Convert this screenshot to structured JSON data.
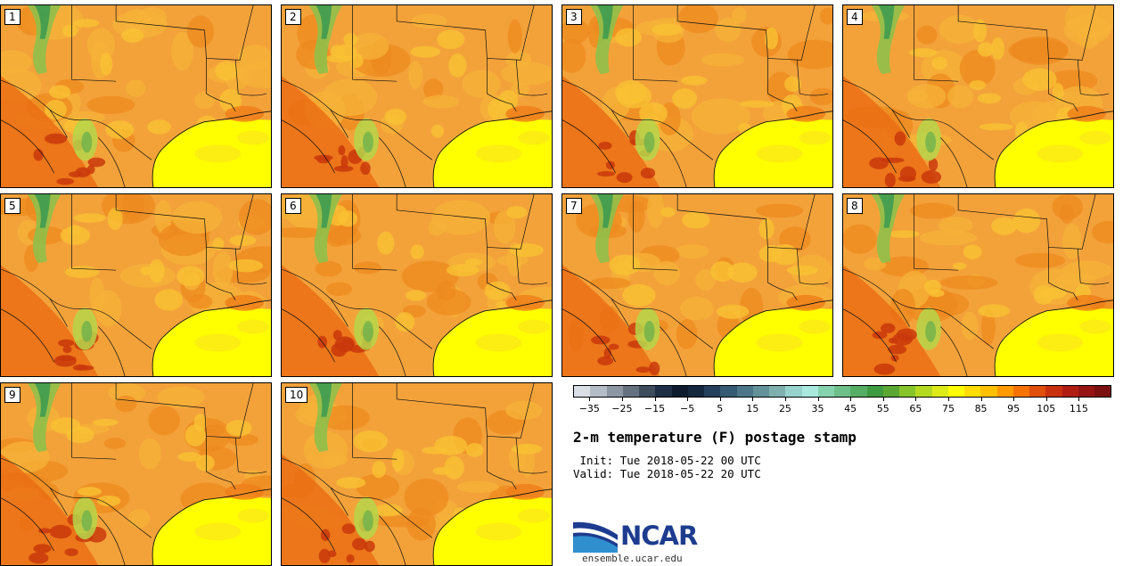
{
  "panels": [
    {
      "label": "1"
    },
    {
      "label": "2"
    },
    {
      "label": "3"
    },
    {
      "label": "4"
    },
    {
      "label": "5"
    },
    {
      "label": "6"
    },
    {
      "label": "7"
    },
    {
      "label": "8"
    },
    {
      "label": "9"
    },
    {
      "label": "10"
    }
  ],
  "colorbar": {
    "colors": [
      "#dadfe6",
      "#b4bcc6",
      "#8d97a3",
      "#667180",
      "#3e4d5c",
      "#1d2f44",
      "#0d1b2e",
      "#14283e",
      "#24405a",
      "#355b72",
      "#4b7788",
      "#649299",
      "#7eb0ae",
      "#96d3cc",
      "#aae9de",
      "#85d3ae",
      "#6dc08a",
      "#56ad64",
      "#3f9b40",
      "#5ba733",
      "#86c42a",
      "#b4da1f",
      "#dceb18",
      "#ffff00",
      "#ffdd00",
      "#ffc000",
      "#ff9a00",
      "#f57306",
      "#e04f0b",
      "#c9300f",
      "#b01e12",
      "#961412",
      "#7b1010"
    ],
    "tick_labels": [
      "−35",
      "−25",
      "−15",
      "−5",
      "5",
      "15",
      "25",
      "35",
      "45",
      "55",
      "65",
      "75",
      "85",
      "95",
      "105",
      "115"
    ]
  },
  "title": "2-m temperature (F) postage stamp",
  "init": " Init: Tue 2018-05-22 00 UTC",
  "valid": "Valid: Tue 2018-05-22 20 UTC",
  "logo": {
    "text": "NCAR",
    "url": "ensemble.ucar.edu",
    "colors": {
      "blue": "#1d3c8f",
      "sky": "#2f8fcf"
    }
  }
}
